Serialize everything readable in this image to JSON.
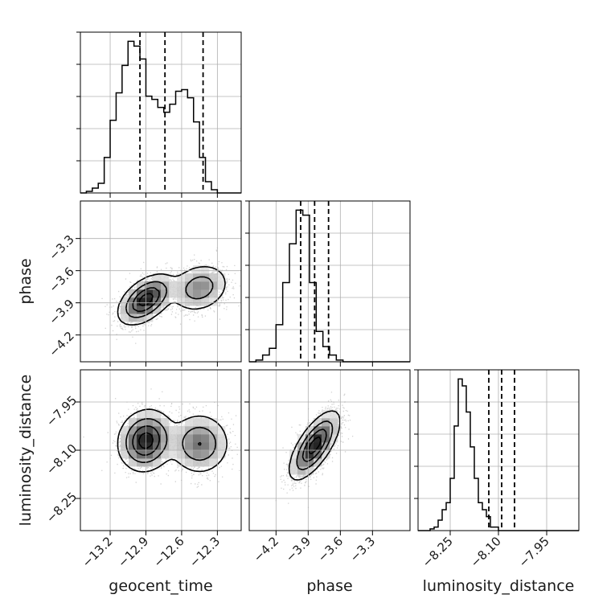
{
  "chart_data": {
    "type": "corner",
    "parameters": [
      {
        "name": "geocent_time",
        "label": "geocent_time",
        "range": [
          -13.45,
          -12.1
        ],
        "ticks": [
          -13.2,
          -12.9,
          -12.6,
          -12.3
        ],
        "tick_labels": [
          "−13.2",
          "−12.9",
          "−12.6",
          "−12.3"
        ],
        "quantiles": [
          -12.95,
          -12.74,
          -12.42
        ],
        "histogram": {
          "bin_width": 0.05,
          "counts": [
            0,
            1,
            3,
            6,
            22,
            45,
            62,
            79,
            94,
            91,
            83,
            60,
            58,
            53,
            50,
            55,
            63,
            64,
            59,
            44,
            22,
            7,
            2,
            0,
            0,
            0,
            0
          ]
        }
      },
      {
        "name": "phase",
        "label": "phase",
        "range": [
          -4.45,
          -2.95
        ],
        "ticks": [
          -4.2,
          -3.9,
          -3.6,
          -3.3
        ],
        "tick_labels": [
          "−4.2",
          "−3.9",
          "−3.6",
          "−3.3"
        ],
        "quantiles": [
          -3.97,
          -3.84,
          -3.71
        ],
        "histogram": {
          "bin_width": 0.0625,
          "counts": [
            0,
            1,
            4,
            8,
            22,
            47,
            70,
            90,
            87,
            47,
            18,
            9,
            4,
            1,
            0,
            0,
            0,
            0,
            0,
            0,
            0,
            0,
            0,
            0
          ]
        }
      },
      {
        "name": "luminosity_distance",
        "label": "luminosity_distance",
        "range": [
          -8.35,
          -7.85
        ],
        "ticks": [
          -8.25,
          -8.1,
          -7.95
        ],
        "tick_labels": [
          "−8.25",
          "−8.10",
          "−7.95"
        ],
        "quantiles": [
          -8.13,
          -8.09,
          -8.05
        ],
        "histogram": {
          "bin_width": 0.0125,
          "counts": [
            0,
            0,
            0,
            1,
            2,
            6,
            12,
            16,
            30,
            60,
            87,
            83,
            68,
            48,
            30,
            16,
            12,
            8,
            2,
            2,
            0,
            0,
            0,
            0,
            0,
            0,
            0,
            0,
            0,
            0,
            0,
            0,
            0,
            0,
            0,
            0,
            0,
            0,
            0,
            0
          ]
        }
      }
    ],
    "pair_plots": [
      {
        "x": "geocent_time",
        "y": "phase",
        "modes": [
          {
            "x": -12.9,
            "y": -3.87,
            "sx": 0.11,
            "sy": 0.11,
            "rho": 0.5,
            "w": 0.62
          },
          {
            "x": -12.45,
            "y": -3.76,
            "sx": 0.12,
            "sy": 0.11,
            "rho": 0.2,
            "w": 0.38
          }
        ]
      },
      {
        "x": "geocent_time",
        "y": "luminosity_distance",
        "modes": [
          {
            "x": -12.9,
            "y": -8.07,
            "sx": 0.11,
            "sy": 0.045,
            "rho": 0.1,
            "w": 0.6
          },
          {
            "x": -12.45,
            "y": -8.08,
            "sx": 0.12,
            "sy": 0.045,
            "rho": 0.0,
            "w": 0.4
          }
        ]
      },
      {
        "x": "phase",
        "y": "luminosity_distance",
        "modes": [
          {
            "x": -3.84,
            "y": -8.085,
            "sx": 0.11,
            "sy": 0.05,
            "rho": 0.7,
            "w": 1.0
          }
        ]
      }
    ],
    "grid": true,
    "quantile_line_style": "dashed"
  }
}
